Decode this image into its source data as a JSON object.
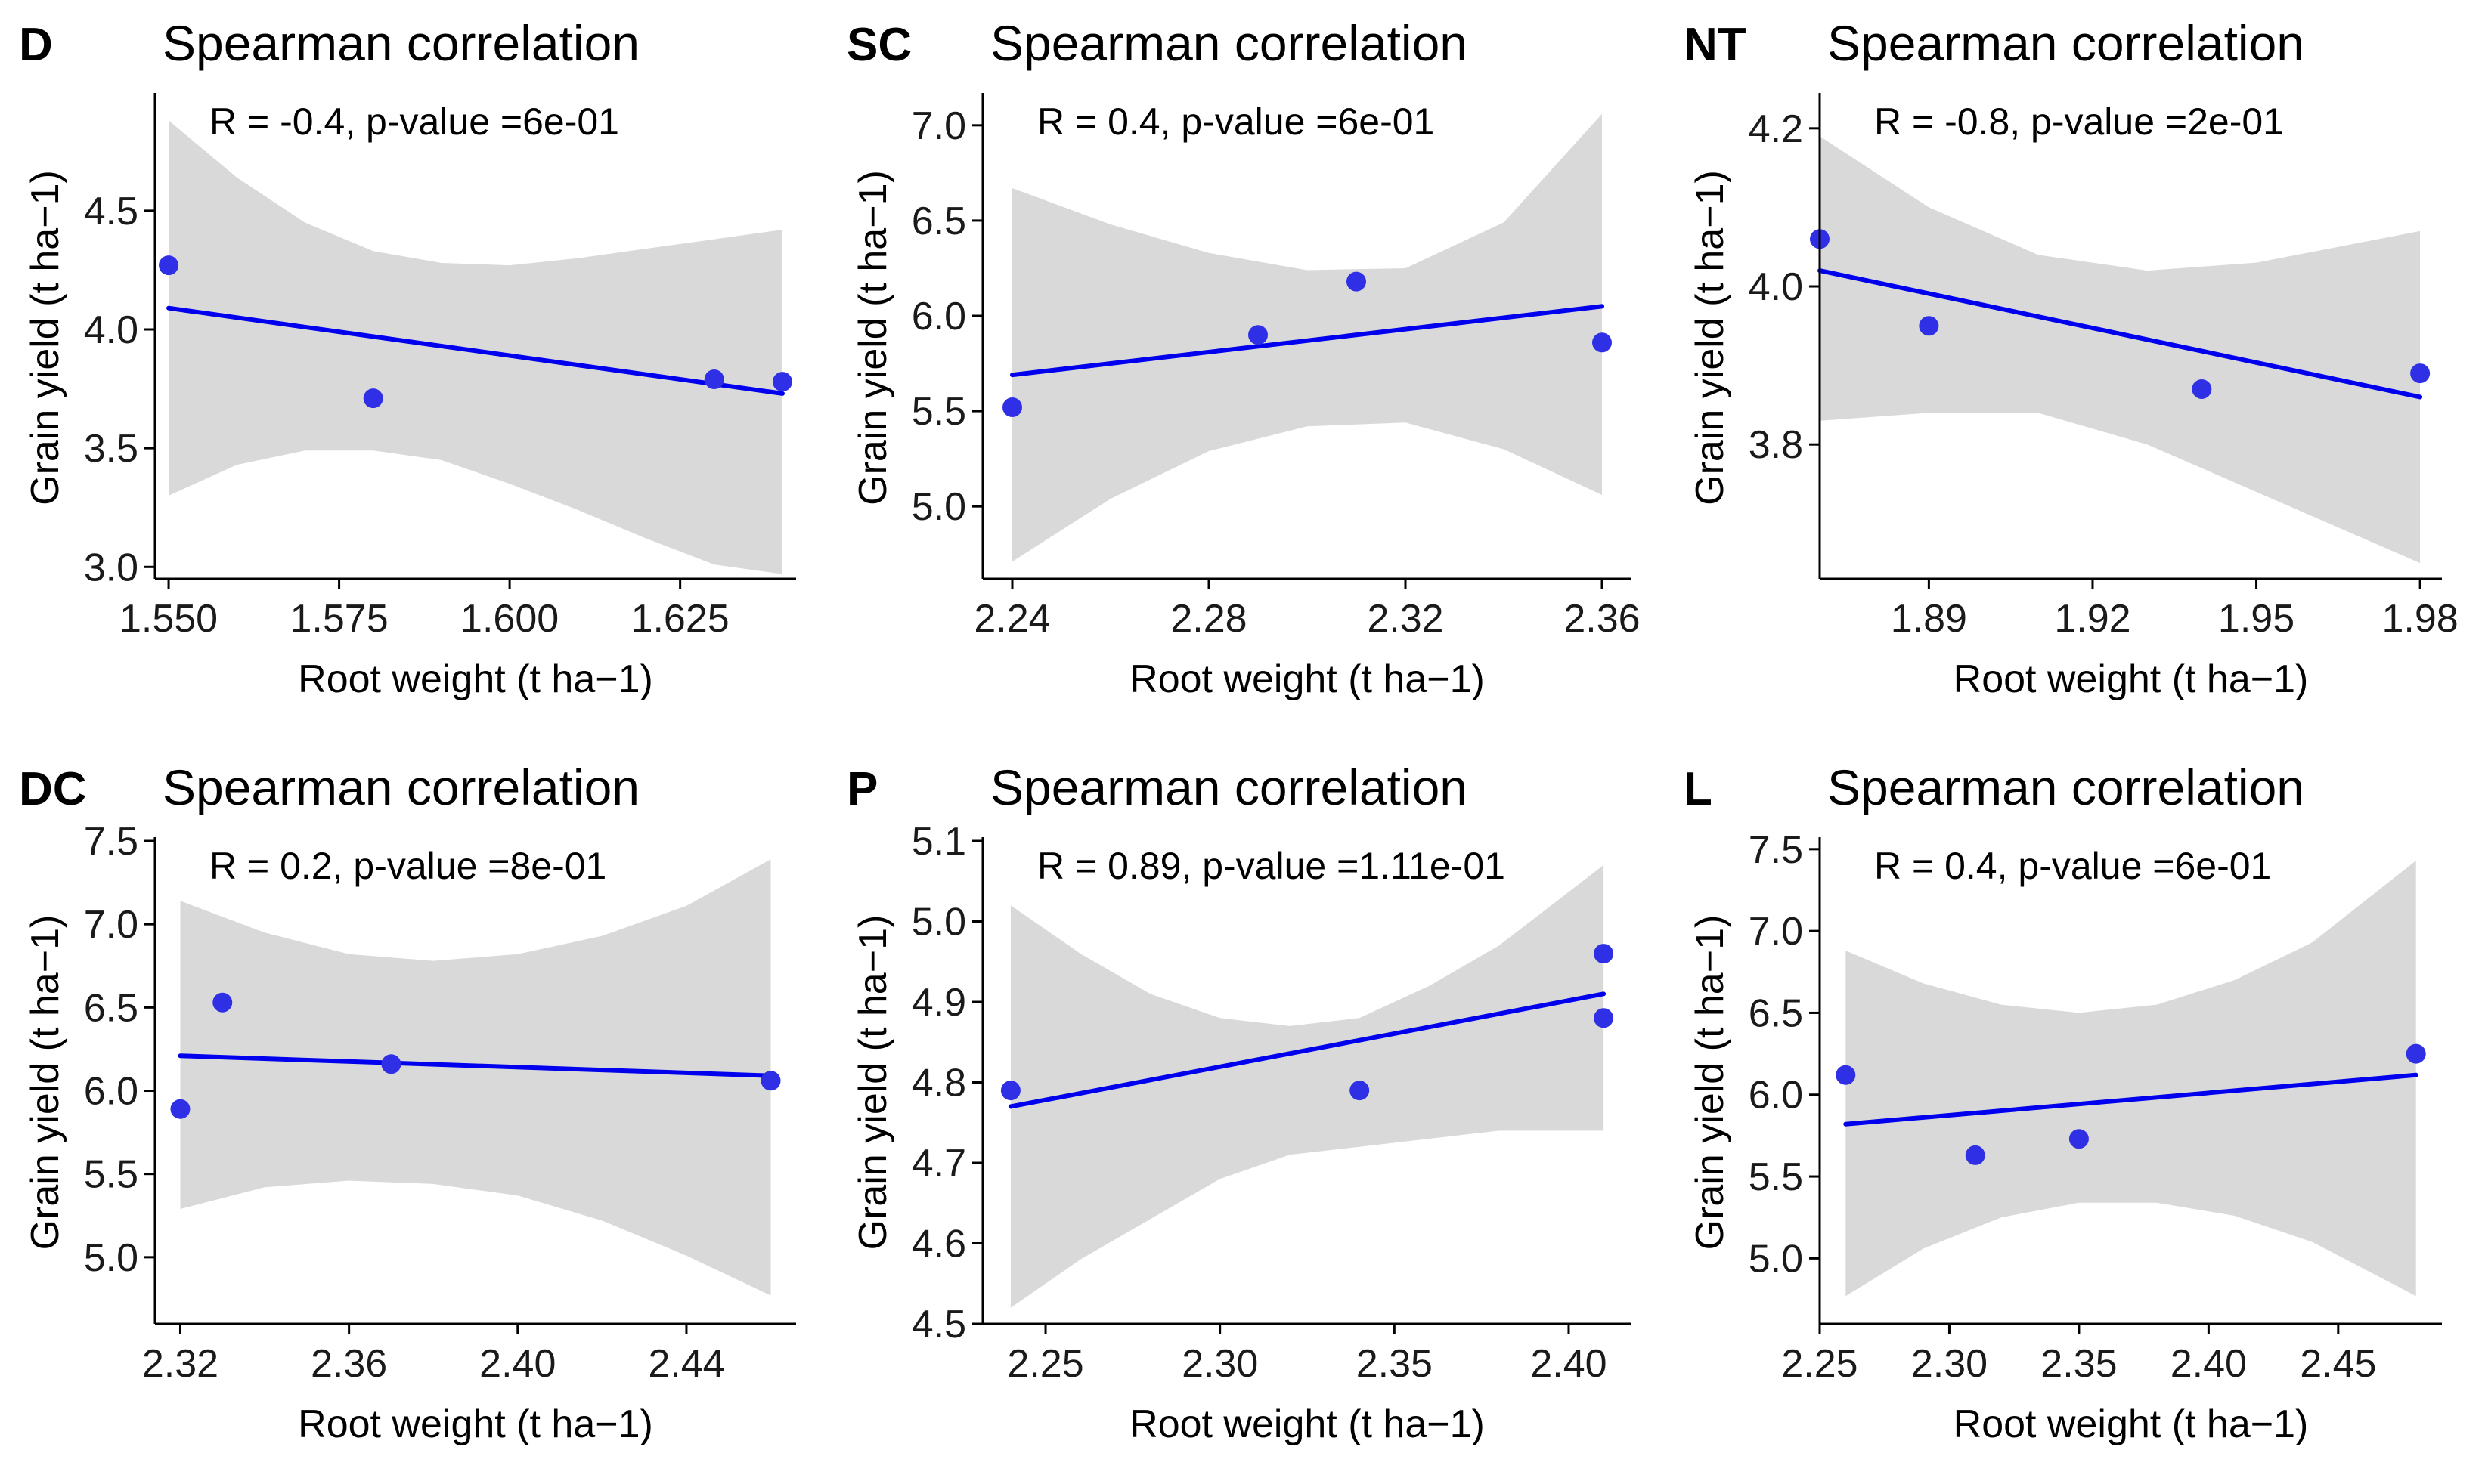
{
  "figure": {
    "background": "#ffffff",
    "point_color": "#2f2fe6",
    "line_color": "#0000ee",
    "band_color": "#d9d9d9"
  },
  "chart_data": [
    {
      "type": "scatter",
      "panel_label": "D",
      "title": "Spearman correlation",
      "annotation": "R = -0.4, p-value =6e-01",
      "xlabel": "Root weight (t ha−1)",
      "ylabel": "Grain yield (t ha−1)",
      "xlim": [
        1.548,
        1.642
      ],
      "ylim": [
        2.95,
        4.98
      ],
      "xticks": [
        1.55,
        1.575,
        1.6,
        1.625
      ],
      "xtick_labels": [
        "1.550",
        "1.575",
        "1.600",
        "1.625"
      ],
      "yticks": [
        3.0,
        3.5,
        4.0,
        4.5
      ],
      "ytick_labels": [
        "3.0",
        "3.5",
        "4.0",
        "4.5"
      ],
      "points": [
        [
          1.55,
          4.27
        ],
        [
          1.58,
          3.71
        ],
        [
          1.63,
          3.79
        ],
        [
          1.64,
          3.78
        ]
      ],
      "fit": [
        [
          1.55,
          4.09
        ],
        [
          1.64,
          3.73
        ]
      ],
      "band_upper": [
        [
          1.55,
          4.88
        ],
        [
          1.56,
          4.64
        ],
        [
          1.57,
          4.45
        ],
        [
          1.58,
          4.33
        ],
        [
          1.59,
          4.28
        ],
        [
          1.6,
          4.27
        ],
        [
          1.61,
          4.3
        ],
        [
          1.62,
          4.34
        ],
        [
          1.63,
          4.38
        ],
        [
          1.64,
          4.42
        ]
      ],
      "band_lower": [
        [
          1.55,
          3.3
        ],
        [
          1.56,
          3.43
        ],
        [
          1.57,
          3.49
        ],
        [
          1.58,
          3.49
        ],
        [
          1.59,
          3.45
        ],
        [
          1.6,
          3.35
        ],
        [
          1.61,
          3.24
        ],
        [
          1.62,
          3.12
        ],
        [
          1.63,
          3.01
        ],
        [
          1.64,
          2.97
        ]
      ]
    },
    {
      "type": "scatter",
      "panel_label": "SC",
      "title": "Spearman correlation",
      "annotation": "R = 0.4, p-value =6e-01",
      "xlabel": "Root weight (t ha−1)",
      "ylabel": "Grain yield (t ha−1)",
      "xlim": [
        2.234,
        2.366
      ],
      "ylim": [
        4.62,
        7.15
      ],
      "xticks": [
        2.24,
        2.28,
        2.32,
        2.36
      ],
      "xtick_labels": [
        "2.24",
        "2.28",
        "2.32",
        "2.36"
      ],
      "yticks": [
        5.0,
        5.5,
        6.0,
        6.5,
        7.0
      ],
      "ytick_labels": [
        "5.0",
        "5.5",
        "6.0",
        "6.5",
        "7.0"
      ],
      "points": [
        [
          2.24,
          5.52
        ],
        [
          2.29,
          5.9
        ],
        [
          2.31,
          6.18
        ],
        [
          2.36,
          5.86
        ]
      ],
      "fit": [
        [
          2.24,
          5.69
        ],
        [
          2.36,
          6.05
        ]
      ],
      "band_upper": [
        [
          2.24,
          6.67
        ],
        [
          2.26,
          6.48
        ],
        [
          2.28,
          6.33
        ],
        [
          2.3,
          6.24
        ],
        [
          2.32,
          6.25
        ],
        [
          2.34,
          6.49
        ],
        [
          2.36,
          7.06
        ]
      ],
      "band_lower": [
        [
          2.24,
          4.71
        ],
        [
          2.26,
          5.04
        ],
        [
          2.28,
          5.29
        ],
        [
          2.3,
          5.42
        ],
        [
          2.32,
          5.44
        ],
        [
          2.34,
          5.3
        ],
        [
          2.36,
          5.06
        ]
      ]
    },
    {
      "type": "scatter",
      "panel_label": "NT",
      "title": "Spearman correlation",
      "annotation": "R = -0.8, p-value =2e-01",
      "xlabel": "Root weight (t ha−1)",
      "ylabel": "Grain yield (t ha−1)",
      "xlim": [
        1.87,
        1.984
      ],
      "ylim": [
        3.63,
        4.24
      ],
      "xticks": [
        1.89,
        1.92,
        1.95,
        1.98
      ],
      "xtick_labels": [
        "1.89",
        "1.92",
        "1.95",
        "1.98"
      ],
      "yticks": [
        3.8,
        4.0,
        4.2
      ],
      "ytick_labels": [
        "3.8",
        "4.0",
        "4.2"
      ],
      "points": [
        [
          1.87,
          4.06
        ],
        [
          1.89,
          3.95
        ],
        [
          1.94,
          3.87
        ],
        [
          1.98,
          3.89
        ]
      ],
      "fit": [
        [
          1.87,
          4.02
        ],
        [
          1.98,
          3.86
        ]
      ],
      "band_upper": [
        [
          1.87,
          4.19
        ],
        [
          1.89,
          4.1
        ],
        [
          1.91,
          4.04
        ],
        [
          1.93,
          4.02
        ],
        [
          1.95,
          4.03
        ],
        [
          1.98,
          4.07
        ]
      ],
      "band_lower": [
        [
          1.87,
          3.83
        ],
        [
          1.89,
          3.84
        ],
        [
          1.91,
          3.84
        ],
        [
          1.93,
          3.8
        ],
        [
          1.95,
          3.74
        ],
        [
          1.98,
          3.65
        ]
      ]
    },
    {
      "type": "scatter",
      "panel_label": "DC",
      "title": "Spearman correlation",
      "annotation": "R = 0.2, p-value =8e-01",
      "xlabel": "Root weight (t ha−1)",
      "ylabel": "Grain yield (t ha−1)",
      "xlim": [
        2.314,
        2.466
      ],
      "ylim": [
        4.6,
        7.5
      ],
      "xticks": [
        2.32,
        2.36,
        2.4,
        2.44
      ],
      "xtick_labels": [
        "2.32",
        "2.36",
        "2.40",
        "2.44"
      ],
      "yticks": [
        5.0,
        5.5,
        6.0,
        6.5,
        7.0,
        7.5
      ],
      "ytick_labels": [
        "5.0",
        "5.5",
        "6.0",
        "6.5",
        "7.0",
        "7.5"
      ],
      "points": [
        [
          2.32,
          5.89
        ],
        [
          2.33,
          6.53
        ],
        [
          2.37,
          6.16
        ],
        [
          2.46,
          6.06
        ]
      ],
      "fit": [
        [
          2.32,
          6.21
        ],
        [
          2.46,
          6.09
        ]
      ],
      "band_upper": [
        [
          2.32,
          7.14
        ],
        [
          2.34,
          6.95
        ],
        [
          2.36,
          6.82
        ],
        [
          2.38,
          6.78
        ],
        [
          2.4,
          6.82
        ],
        [
          2.42,
          6.93
        ],
        [
          2.44,
          7.11
        ],
        [
          2.46,
          7.39
        ]
      ],
      "band_lower": [
        [
          2.32,
          5.29
        ],
        [
          2.34,
          5.42
        ],
        [
          2.36,
          5.46
        ],
        [
          2.38,
          5.44
        ],
        [
          2.4,
          5.37
        ],
        [
          2.42,
          5.22
        ],
        [
          2.44,
          5.01
        ],
        [
          2.46,
          4.77
        ]
      ]
    },
    {
      "type": "scatter",
      "panel_label": "P",
      "title": "Spearman correlation",
      "annotation": "R = 0.89, p-value =1.11e-01",
      "xlabel": "Root weight (t ha−1)",
      "ylabel": "Grain yield (t ha−1)",
      "xlim": [
        2.232,
        2.418
      ],
      "ylim": [
        4.5,
        5.1
      ],
      "xticks": [
        2.25,
        2.3,
        2.35,
        2.4
      ],
      "xtick_labels": [
        "2.25",
        "2.30",
        "2.35",
        "2.40"
      ],
      "yticks": [
        4.5,
        4.6,
        4.7,
        4.8,
        4.9,
        5.0,
        5.1
      ],
      "ytick_labels": [
        "4.5",
        "4.6",
        "4.7",
        "4.8",
        "4.9",
        "5.0",
        "5.1"
      ],
      "points": [
        [
          2.24,
          4.79
        ],
        [
          2.34,
          4.79
        ],
        [
          2.41,
          4.96
        ],
        [
          2.41,
          4.88
        ]
      ],
      "fit": [
        [
          2.24,
          4.77
        ],
        [
          2.41,
          4.91
        ]
      ],
      "band_upper": [
        [
          2.24,
          5.02
        ],
        [
          2.26,
          4.96
        ],
        [
          2.28,
          4.91
        ],
        [
          2.3,
          4.88
        ],
        [
          2.32,
          4.87
        ],
        [
          2.34,
          4.88
        ],
        [
          2.36,
          4.92
        ],
        [
          2.38,
          4.97
        ],
        [
          2.41,
          5.07
        ]
      ],
      "band_lower": [
        [
          2.24,
          4.52
        ],
        [
          2.26,
          4.58
        ],
        [
          2.28,
          4.63
        ],
        [
          2.3,
          4.68
        ],
        [
          2.32,
          4.71
        ],
        [
          2.34,
          4.72
        ],
        [
          2.36,
          4.73
        ],
        [
          2.38,
          4.74
        ],
        [
          2.41,
          4.74
        ]
      ]
    },
    {
      "type": "scatter",
      "panel_label": "L",
      "title": "Spearman correlation",
      "annotation": "R = 0.4, p-value =6e-01",
      "xlabel": "Root weight (t ha−1)",
      "ylabel": "Grain yield (t ha−1)",
      "xlim": [
        2.25,
        2.49
      ],
      "ylim": [
        4.6,
        7.55
      ],
      "xticks": [
        2.25,
        2.3,
        2.35,
        2.4,
        2.45
      ],
      "xtick_labels": [
        "2.25",
        "2.30",
        "2.35",
        "2.40",
        "2.45"
      ],
      "yticks": [
        5.0,
        5.5,
        6.0,
        6.5,
        7.0,
        7.5
      ],
      "ytick_labels": [
        "5.0",
        "5.5",
        "6.0",
        "6.5",
        "7.0",
        "7.5"
      ],
      "points": [
        [
          2.26,
          6.12
        ],
        [
          2.31,
          5.63
        ],
        [
          2.35,
          5.73
        ],
        [
          2.48,
          6.25
        ]
      ],
      "fit": [
        [
          2.26,
          5.82
        ],
        [
          2.48,
          6.12
        ]
      ],
      "band_upper": [
        [
          2.26,
          6.88
        ],
        [
          2.29,
          6.68
        ],
        [
          2.32,
          6.55
        ],
        [
          2.35,
          6.5
        ],
        [
          2.38,
          6.55
        ],
        [
          2.41,
          6.7
        ],
        [
          2.44,
          6.93
        ],
        [
          2.48,
          7.43
        ]
      ],
      "band_lower": [
        [
          2.26,
          4.77
        ],
        [
          2.29,
          5.06
        ],
        [
          2.32,
          5.25
        ],
        [
          2.35,
          5.34
        ],
        [
          2.38,
          5.34
        ],
        [
          2.41,
          5.26
        ],
        [
          2.44,
          5.1
        ],
        [
          2.48,
          4.77
        ]
      ]
    }
  ]
}
